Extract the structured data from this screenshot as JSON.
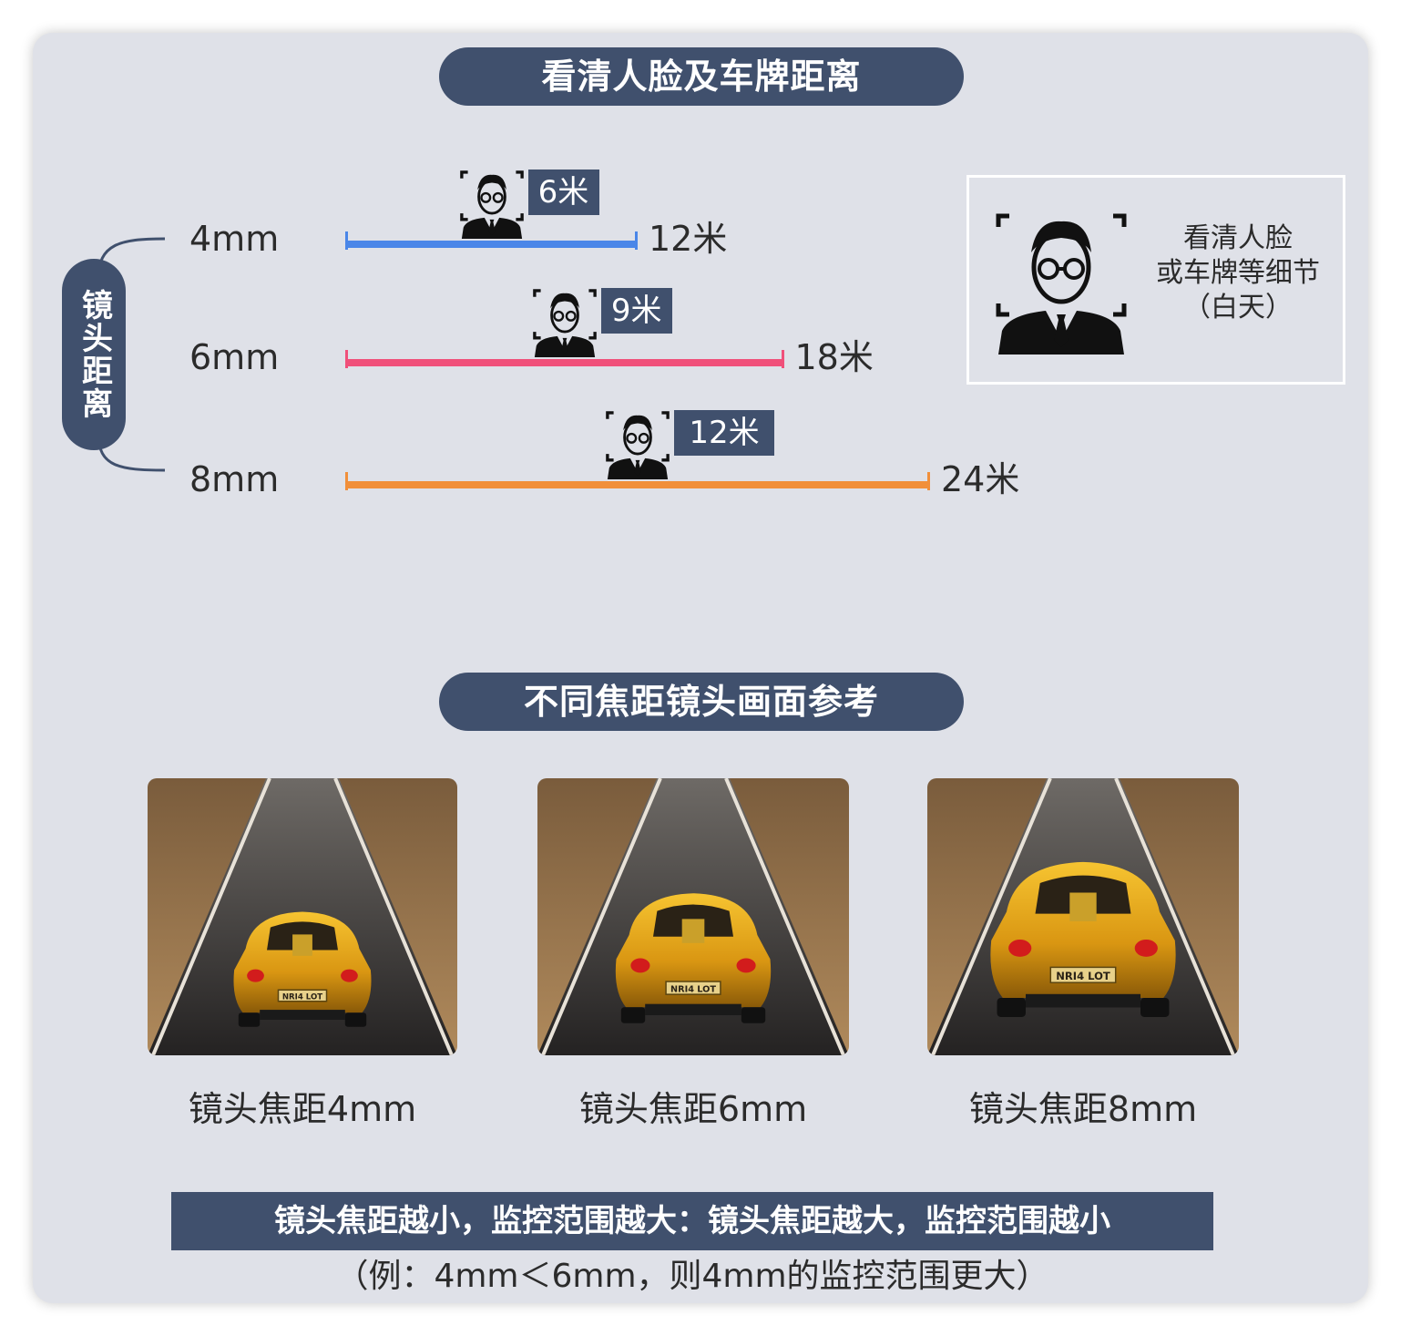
{
  "section1": {
    "title": "看清人脸及车牌距离"
  },
  "side_label": "镜头距离",
  "chart_data": {
    "type": "bar",
    "categories": [
      "4mm",
      "6mm",
      "8mm"
    ],
    "series": [
      {
        "values": [
          12,
          18,
          24
        ]
      }
    ],
    "face_distance": [
      6,
      9,
      12
    ],
    "face_distance_labels": [
      "6米",
      "9米",
      "12米"
    ],
    "range_labels": [
      "12米",
      "18米",
      "24米"
    ],
    "unit": "米",
    "colors": [
      "#4a86e8",
      "#f0507a",
      "#f18f3a"
    ],
    "xlim": [
      0,
      24
    ]
  },
  "legend": {
    "line1": "看清人脸",
    "line2": "或车牌等细节",
    "line3": "（白天）"
  },
  "section2": {
    "title": "不同焦距镜头画面参考"
  },
  "photos": [
    {
      "caption": "镜头焦距4mm",
      "plate": "NRI4 LOT",
      "scale": 0.78
    },
    {
      "caption": "镜头焦距6mm",
      "plate": "NRI4 LOT",
      "scale": 0.88
    },
    {
      "caption": "镜头焦距8mm",
      "plate": "NRI4 LOT",
      "scale": 1.05
    }
  ],
  "summary": {
    "main": "镜头焦距越小，监控范围越大：镜头焦距越大，监控范围越小",
    "note": "（例：4mm＜6mm，则4mm的监控范围更大）"
  },
  "colors": {
    "accent": "#40506d",
    "panel": "#dfe1e8",
    "text": "#2b2b2b"
  }
}
